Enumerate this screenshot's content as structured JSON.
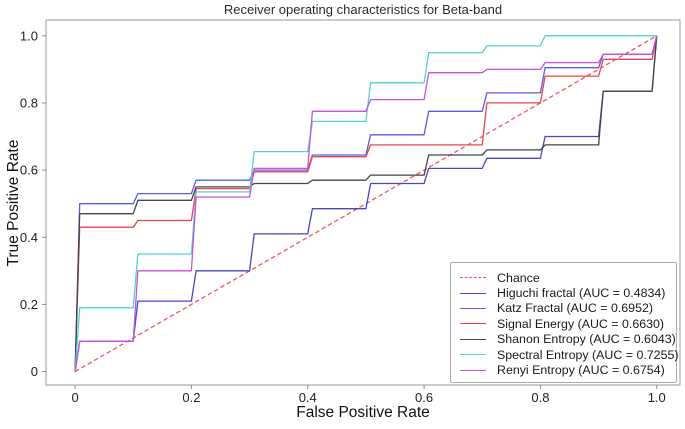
{
  "title": "Receiver operating characteristics for Beta-band",
  "axes": {
    "xlabel": "False Positive Rate",
    "ylabel": "True Positive Rate",
    "x_tick_labels": [
      "0",
      "0.2",
      "0.4",
      "0.6",
      "0.8",
      "1.0"
    ],
    "x_tick_values": [
      0,
      0.2,
      0.4,
      0.6,
      0.8,
      1.0
    ],
    "y_tick_labels": [
      "0",
      "0.2",
      "0.4",
      "0.6",
      "0.8",
      "1.0"
    ],
    "y_tick_values": [
      0,
      0.2,
      0.4,
      0.6,
      0.8,
      1.0
    ]
  },
  "chart_data": {
    "type": "line",
    "subtype": "roc-step-curves",
    "title": "Receiver operating characteristics for Beta-band",
    "xlabel": "False Positive Rate",
    "ylabel": "True Positive Rate",
    "xlim": [
      -0.05,
      1.04
    ],
    "ylim": [
      -0.04,
      1.047
    ],
    "grid": false,
    "legend_position": "lower right",
    "step_edges": [
      0,
      0.1,
      0.2,
      0.3,
      0.4,
      0.5,
      0.6,
      0.7,
      0.8,
      0.9,
      1.0
    ],
    "note": "Step curves: levels[i] is the TPR held over FPR band [step_edges[i], step_edges[i+1]]; every curve starts at (0,0) and ends at (1,1).",
    "series": [
      {
        "name": "chance",
        "label": "Chance",
        "color": "#f2555f",
        "dashed": true,
        "x": [
          0,
          1
        ],
        "y": [
          0,
          1
        ]
      },
      {
        "name": "higuchi-fractal",
        "label": "Higuchi fractal (AUC = 0.4834)",
        "auc": 0.4834,
        "color": "#4547c6",
        "dashed": false,
        "levels": [
          0.09,
          0.21,
          0.3,
          0.41,
          0.485,
          0.56,
          0.605,
          0.635,
          0.7,
          0.835
        ]
      },
      {
        "name": "katz-fractal",
        "label": "Katz Fractal (AUC = 0.6952)",
        "auc": 0.6952,
        "color": "#5a5be8",
        "dashed": false,
        "levels": [
          0.5,
          0.53,
          0.57,
          0.6,
          0.645,
          0.705,
          0.775,
          0.83,
          0.905,
          0.945
        ]
      },
      {
        "name": "signal-energy",
        "label": "Signal Energy (AUC = 0.6630)",
        "auc": 0.663,
        "color": "#e8454f",
        "dashed": false,
        "levels": [
          0.43,
          0.45,
          0.545,
          0.595,
          0.64,
          0.675,
          0.675,
          0.8,
          0.88,
          0.93
        ]
      },
      {
        "name": "shanon-entropy",
        "label": "Shanon Entropy (AUC = 0.6043)",
        "auc": 0.6043,
        "color": "#454549",
        "dashed": false,
        "levels": [
          0.47,
          0.51,
          0.55,
          0.56,
          0.57,
          0.585,
          0.645,
          0.66,
          0.675,
          0.835
        ]
      },
      {
        "name": "spectral-entropy",
        "label": "Spectral Entropy (AUC = 0.7255)",
        "auc": 0.7255,
        "color": "#50d5cc",
        "dashed": false,
        "levels": [
          0.19,
          0.35,
          0.535,
          0.655,
          0.745,
          0.86,
          0.95,
          0.97,
          1.0,
          1.0
        ]
      },
      {
        "name": "renyi-entropy",
        "label": "Renyi Entropy (AUC = 0.6754)",
        "auc": 0.6754,
        "color": "#c653d8",
        "dashed": false,
        "levels": [
          0.09,
          0.3,
          0.52,
          0.605,
          0.775,
          0.81,
          0.89,
          0.9,
          0.92,
          0.945
        ]
      }
    ],
    "colors": {
      "background": "#ffffff",
      "spine": "#9a9a9a",
      "tick": "#8a8a8a",
      "tick_label": "#222222",
      "legend_border": "#acacac"
    }
  }
}
